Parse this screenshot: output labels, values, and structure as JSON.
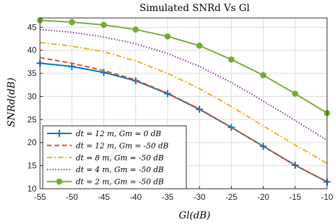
{
  "chart_data": {
    "type": "line",
    "title": "Simulated SNRd Vs Gl",
    "xlabel": "Gl(dB)",
    "ylabel": "SNRd(dB)",
    "xlim": [
      -55,
      -10
    ],
    "ylim": [
      10,
      47
    ],
    "xticks": [
      -55,
      -50,
      -45,
      -40,
      -35,
      -30,
      -25,
      -20,
      -15,
      -10
    ],
    "yticks": [
      10,
      15,
      20,
      25,
      30,
      35,
      40,
      45
    ],
    "grid": true,
    "legend_position": "bottom-left",
    "x": [
      -55,
      -50,
      -45,
      -40,
      -35,
      -30,
      -25,
      -20,
      -15,
      -10
    ],
    "series": [
      {
        "name": "dt = 12 m, Gm = 0 dB",
        "color": "#0072BD",
        "dash": "solid",
        "marker": "plus",
        "values": [
          37.2,
          36.5,
          35.2,
          33.4,
          30.6,
          27.2,
          23.3,
          19.2,
          15.1,
          11.5
        ]
      },
      {
        "name": "dt = 12 m, Gm = -50 dB",
        "color": "#D95319",
        "dash": "dashed",
        "marker": "none",
        "values": [
          38.4,
          37.2,
          35.6,
          33.6,
          30.7,
          27.3,
          23.3,
          19.2,
          15.1,
          11.5
        ]
      },
      {
        "name": "dt = 8 m, Gm = -50 dB",
        "color": "#EDB120",
        "dash": "dashdot",
        "marker": "none",
        "values": [
          41.7,
          40.9,
          39.7,
          37.7,
          35.0,
          31.7,
          27.8,
          23.6,
          19.5,
          15.5
        ]
      },
      {
        "name": "dt = 4 m, Gm = -50 dB",
        "color": "#7E2F8E",
        "dash": "dotted",
        "marker": "none",
        "values": [
          44.5,
          43.9,
          42.9,
          41.4,
          39.3,
          36.5,
          33.0,
          29.0,
          24.8,
          20.5
        ]
      },
      {
        "name": "dt = 2 m, Gm = -50 dB",
        "color": "#77AC30",
        "dash": "solid",
        "marker": "circle",
        "values": [
          46.5,
          46.1,
          45.5,
          44.5,
          43.0,
          41.0,
          38.0,
          34.6,
          30.6,
          26.4
        ]
      }
    ]
  }
}
